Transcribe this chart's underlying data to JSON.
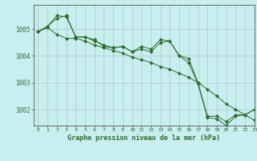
{
  "background_color": "#c8eef0",
  "grid_color": "#b0c8c8",
  "line_color": "#2d6e2d",
  "marker_color": "#2d6e2d",
  "xlabel": "Graphe pression niveau de la mer (hPa)",
  "xlim": [
    -0.5,
    23
  ],
  "ylim": [
    1001.4,
    1005.9
  ],
  "yticks": [
    1002,
    1003,
    1004,
    1005
  ],
  "xticks": [
    0,
    1,
    2,
    3,
    4,
    5,
    6,
    7,
    8,
    9,
    10,
    11,
    12,
    13,
    14,
    15,
    16,
    17,
    18,
    19,
    20,
    21,
    22,
    23
  ],
  "series": [
    [
      1004.9,
      1005.1,
      1005.4,
      1005.5,
      1004.7,
      1004.7,
      1004.6,
      1004.35,
      1004.3,
      1004.35,
      1004.15,
      1004.35,
      1004.25,
      1004.6,
      1004.55,
      1004.0,
      1003.9,
      1003.0,
      1001.75,
      1001.75,
      1001.55,
      1001.8,
      1001.8,
      1002.0
    ],
    [
      1004.9,
      1005.1,
      1005.5,
      1005.45,
      1004.7,
      1004.7,
      1004.55,
      1004.4,
      1004.3,
      1004.35,
      1004.15,
      1004.25,
      1004.15,
      1004.5,
      1004.55,
      1004.0,
      1003.75,
      1002.95,
      1001.7,
      1001.65,
      1001.4,
      1001.75,
      1001.8,
      1002.0
    ],
    [
      1004.9,
      1005.05,
      1004.8,
      1004.65,
      1004.65,
      1004.55,
      1004.4,
      1004.3,
      1004.2,
      1004.1,
      1003.95,
      1003.85,
      1003.75,
      1003.6,
      1003.5,
      1003.35,
      1003.2,
      1003.0,
      1002.75,
      1002.5,
      1002.2,
      1002.0,
      1001.8,
      1001.6
    ]
  ],
  "fig_width": 3.2,
  "fig_height": 2.0,
  "dpi": 100
}
